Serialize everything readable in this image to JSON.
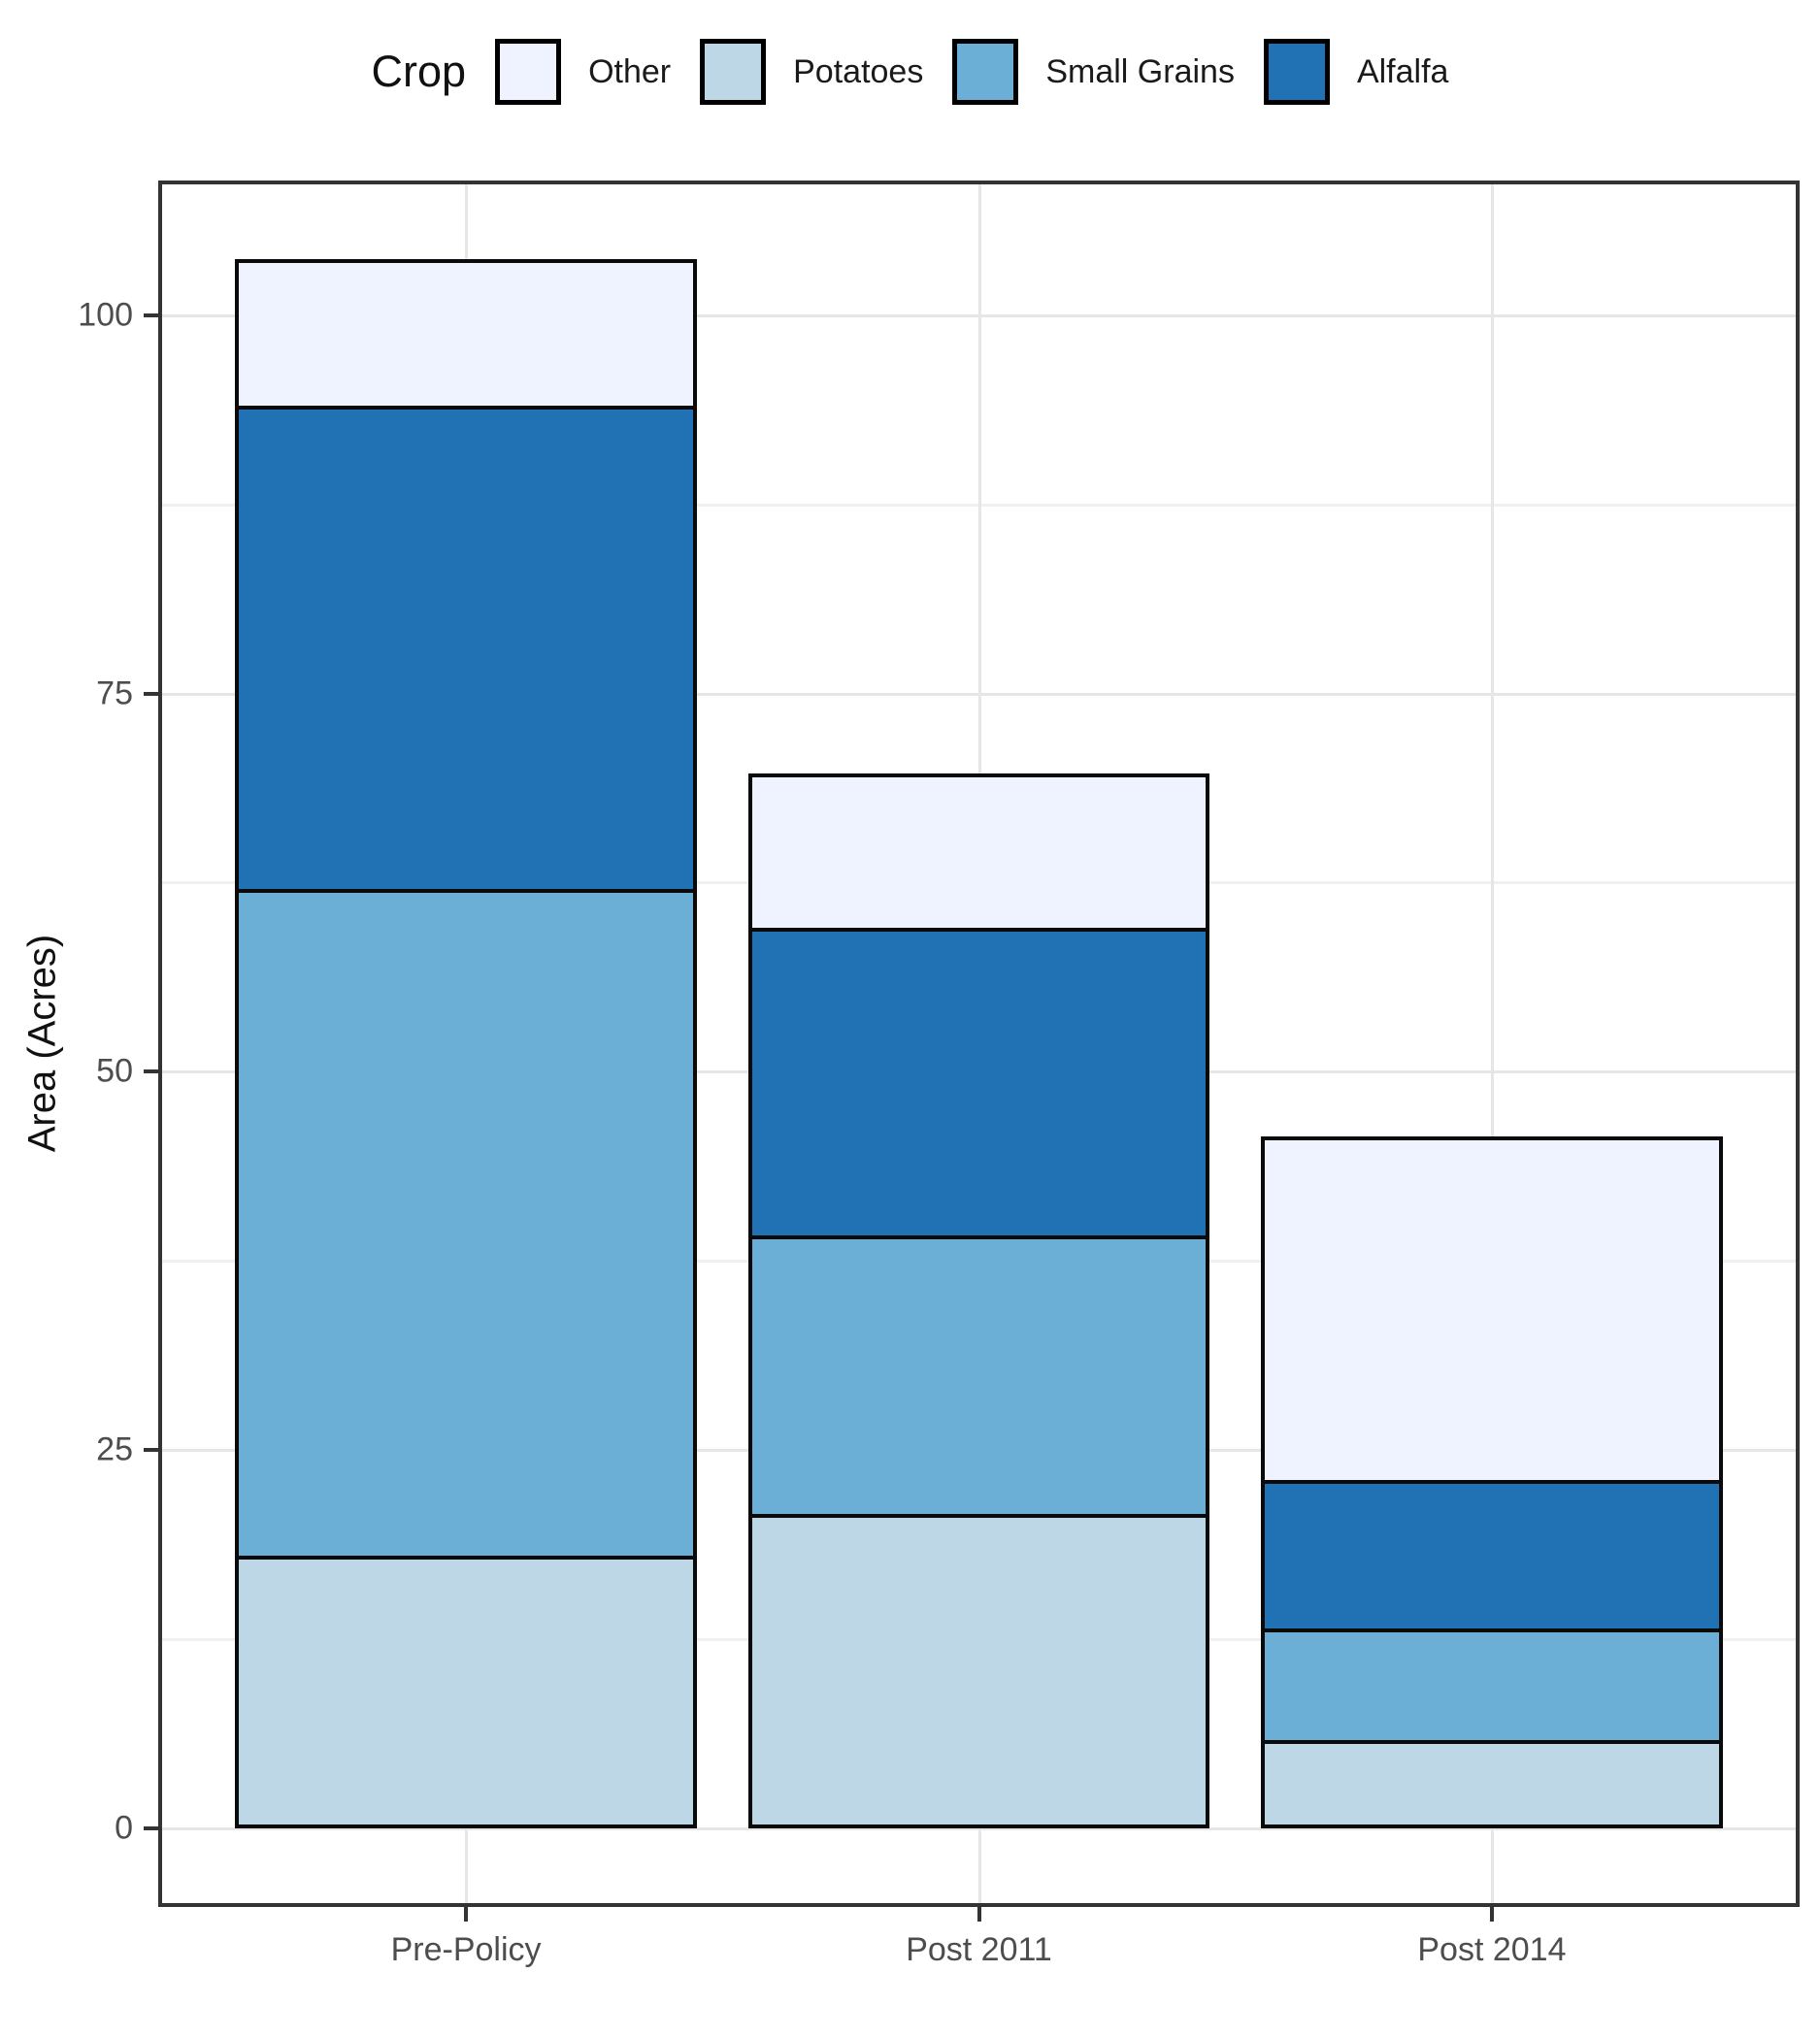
{
  "legend": {
    "title": "Crop",
    "position": "top",
    "items": [
      {
        "label": "Other",
        "color": "#EFF3FF"
      },
      {
        "label": "Potatoes",
        "color": "#BDD7E7"
      },
      {
        "label": "Small Grains",
        "color": "#6BAED6"
      },
      {
        "label": "Alfalfa",
        "color": "#2171B5"
      }
    ],
    "swatch_border_color": "#000000"
  },
  "chart_data": {
    "type": "bar",
    "stacked": true,
    "title": "",
    "xlabel": "",
    "ylabel": "Area (Acres)",
    "categories": [
      "Pre-Policy",
      "Post 2011",
      "Post 2014"
    ],
    "series": [
      {
        "name": "Potatoes",
        "color": "#BDD7E7",
        "values": [
          18.0,
          20.8,
          5.8
        ]
      },
      {
        "name": "Small Grains",
        "color": "#6BAED6",
        "values": [
          44.1,
          18.4,
          7.4
        ]
      },
      {
        "name": "Alfalfa",
        "color": "#2171B5",
        "values": [
          31.9,
          20.3,
          9.8
        ]
      },
      {
        "name": "Other",
        "color": "#EFF3FF",
        "values": [
          9.7,
          10.2,
          22.7
        ]
      }
    ],
    "stack_order_bottom_to_top": [
      "Potatoes",
      "Small Grains",
      "Alfalfa",
      "Other"
    ],
    "stack_totals": [
      103.7,
      69.7,
      45.7
    ],
    "y_ticks": [
      0,
      25,
      50,
      75,
      100
    ],
    "y_tick_labels": [
      "0",
      "25",
      "50",
      "75",
      "100"
    ],
    "y_minor_ticks": [
      12.5,
      37.5,
      62.5,
      87.5
    ],
    "ylim": [
      -5.2,
      108.9
    ],
    "grid": true,
    "legend_position": "top",
    "bar_outline_color": "#0a0a0a",
    "panel_border_color": "#333333",
    "gridline_major_color": "#e6e6e6",
    "gridline_minor_color": "#f0f0f0",
    "tick_text_color": "#4d4d4d"
  }
}
